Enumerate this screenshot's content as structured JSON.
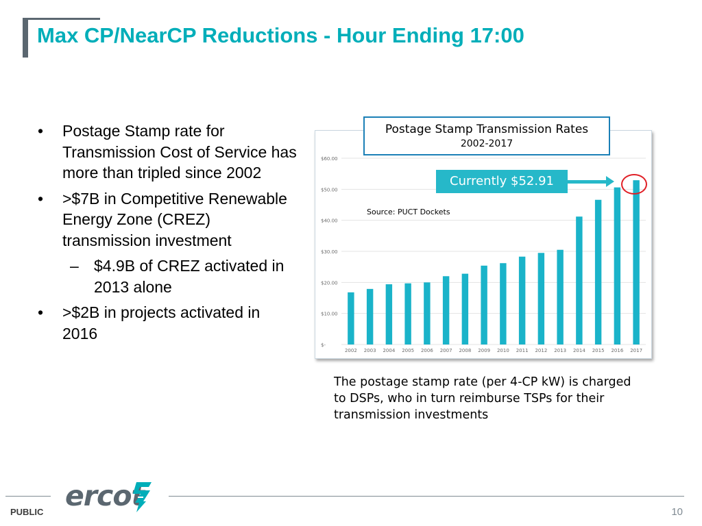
{
  "slide": {
    "title": "Max CP/NearCP Reductions - Hour Ending 17:00",
    "page_number": "10",
    "classification": "PUBLIC",
    "logo_text": "ercot",
    "bullets": [
      {
        "mark": "•",
        "text": "Postage Stamp rate for Transmission Cost of Service has more than tripled since 2002"
      },
      {
        "mark": "•",
        "text": ">$7B in Competitive Renewable Energy Zone (CREZ) transmission investment"
      },
      {
        "mark": "–",
        "text": "$4.9B of CREZ activated in 2013 alone",
        "sub": true
      },
      {
        "mark": "•",
        "text": ">$2B in projects activated in 2016"
      }
    ],
    "caption": "The postage stamp rate (per 4-CP kW) is charged to DSPs, who in turn reimburse TSPs for their transmission investments",
    "callout": "Currently $52.91",
    "source": "Source:  PUCT Dockets",
    "colors": {
      "accent": "#00aeb9",
      "bar": "#1ab3c9",
      "callout": "#26b8c9",
      "highlight": "#e01f26",
      "grey": "#5b6770"
    }
  },
  "chart_data": {
    "type": "bar",
    "title": "Postage Stamp Transmission Rates",
    "subtitle": "2002-2017",
    "categories": [
      "2002",
      "2003",
      "2004",
      "2005",
      "2006",
      "2007",
      "2008",
      "2009",
      "2010",
      "2011",
      "2012",
      "2013",
      "2014",
      "2015",
      "2016",
      "2017"
    ],
    "values": [
      16.8,
      17.9,
      19.4,
      19.7,
      20.0,
      22.0,
      22.8,
      25.4,
      26.2,
      28.3,
      29.5,
      30.5,
      41.2,
      46.6,
      50.6,
      52.91
    ],
    "ylim": [
      0,
      60
    ],
    "yticks": [
      0,
      10,
      20,
      30,
      40,
      50,
      60
    ],
    "ytick_labels": [
      "$-",
      "$10.00",
      "$20.00",
      "$30.00",
      "$40.00",
      "$50.00",
      "$60.00"
    ],
    "xlabel": "",
    "ylabel": "",
    "grid": true
  }
}
